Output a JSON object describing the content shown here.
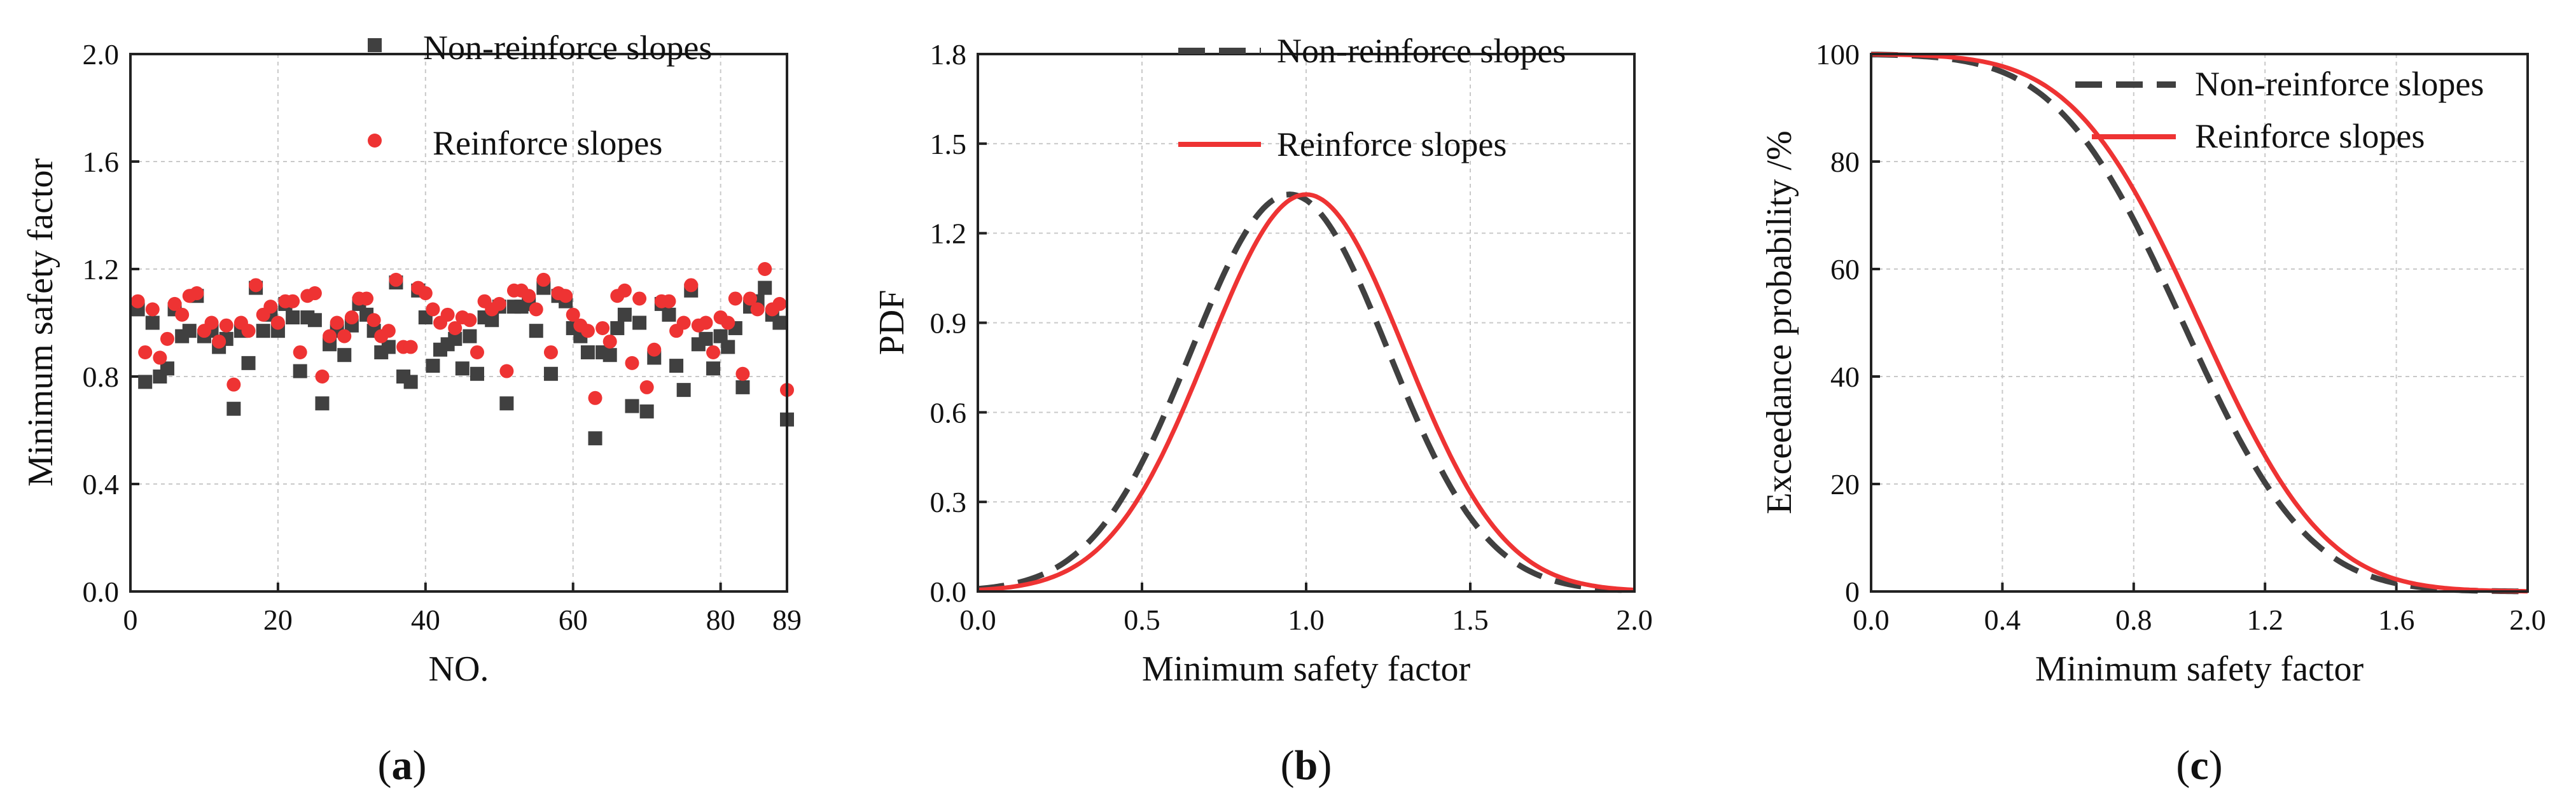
{
  "colors": {
    "non_reinforce": "#404040",
    "reinforce": "#ee3333",
    "grid": "#c9c9c9"
  },
  "chart_data": [
    {
      "id": "a",
      "type": "scatter",
      "caption": "a",
      "xlabel": "NO.",
      "ylabel": "Minimum safety factor",
      "xlim": [
        0,
        89
      ],
      "ylim": [
        0,
        2.0
      ],
      "xticks": [
        0,
        20,
        40,
        60,
        80,
        89
      ],
      "yticks": [
        0.0,
        0.4,
        0.8,
        1.2,
        1.6,
        2.0
      ],
      "grid": true,
      "legend_position": "top-right",
      "x": [
        1,
        2,
        3,
        4,
        5,
        6,
        7,
        8,
        9,
        10,
        11,
        12,
        13,
        14,
        15,
        16,
        17,
        18,
        19,
        20,
        21,
        22,
        23,
        24,
        25,
        26,
        27,
        28,
        29,
        30,
        31,
        32,
        33,
        34,
        35,
        36,
        37,
        38,
        39,
        40,
        41,
        42,
        43,
        44,
        45,
        46,
        47,
        48,
        49,
        50,
        51,
        52,
        53,
        54,
        55,
        56,
        57,
        58,
        59,
        60,
        61,
        62,
        63,
        64,
        65,
        66,
        67,
        68,
        69,
        70,
        71,
        72,
        73,
        74,
        75,
        76,
        77,
        78,
        79,
        80,
        81,
        82,
        83,
        84,
        85,
        86,
        87,
        88,
        89
      ],
      "series": [
        {
          "name": "Non-reinforce slopes",
          "marker": "square",
          "values": [
            1.05,
            0.78,
            1.0,
            0.8,
            0.83,
            1.05,
            0.95,
            0.97,
            1.1,
            0.95,
            0.97,
            0.91,
            0.94,
            0.68,
            0.97,
            0.85,
            1.13,
            0.97,
            1.03,
            0.97,
            1.07,
            1.02,
            0.82,
            1.02,
            1.01,
            0.7,
            0.92,
            0.97,
            0.88,
            0.99,
            1.07,
            1.03,
            0.97,
            0.89,
            0.91,
            1.15,
            0.8,
            0.78,
            1.12,
            1.02,
            0.84,
            0.9,
            0.92,
            0.94,
            0.83,
            0.95,
            0.81,
            1.02,
            1.01,
            1.06,
            0.7,
            1.06,
            1.06,
            1.07,
            0.97,
            1.13,
            0.81,
            1.1,
            1.08,
            0.98,
            0.95,
            0.89,
            0.57,
            0.89,
            0.88,
            0.98,
            1.03,
            0.69,
            1.0,
            0.67,
            0.87,
            1.07,
            1.03,
            0.84,
            0.75,
            1.12,
            0.92,
            0.94,
            0.83,
            0.95,
            0.91,
            0.98,
            0.76,
            1.06,
            1.08,
            1.13,
            1.03,
            1.0,
            0.64
          ]
        },
        {
          "name": "Reinforce slopes",
          "marker": "circle",
          "values": [
            1.08,
            0.89,
            1.05,
            0.87,
            0.94,
            1.07,
            1.03,
            1.1,
            1.11,
            0.97,
            1.0,
            0.93,
            0.99,
            0.77,
            1.0,
            0.97,
            1.14,
            1.03,
            1.06,
            1.0,
            1.08,
            1.08,
            0.89,
            1.1,
            1.11,
            0.8,
            0.95,
            1.0,
            0.95,
            1.02,
            1.09,
            1.09,
            1.01,
            0.95,
            0.97,
            1.16,
            0.91,
            0.91,
            1.13,
            1.11,
            1.05,
            1.0,
            1.03,
            0.98,
            1.02,
            1.01,
            0.89,
            1.08,
            1.05,
            1.07,
            0.82,
            1.12,
            1.12,
            1.1,
            1.05,
            1.16,
            0.89,
            1.11,
            1.1,
            1.03,
            0.99,
            0.97,
            0.72,
            0.98,
            0.93,
            1.1,
            1.12,
            0.85,
            1.09,
            0.76,
            0.9,
            1.08,
            1.08,
            0.97,
            1.0,
            1.14,
            0.99,
            1.0,
            0.89,
            1.02,
            1.0,
            1.09,
            0.81,
            1.09,
            1.05,
            1.2,
            1.05,
            1.07,
            0.75
          ]
        }
      ]
    },
    {
      "id": "b",
      "type": "line",
      "caption": "b",
      "xlabel": "Minimum safety factor",
      "ylabel": "PDF",
      "xlim": [
        0,
        2.0
      ],
      "ylim": [
        0,
        1.8
      ],
      "xticks": [
        0.0,
        0.5,
        1.0,
        1.5,
        2.0
      ],
      "yticks": [
        0.0,
        0.3,
        0.6,
        0.9,
        1.2,
        1.5,
        1.8
      ],
      "grid": true,
      "legend_position": "top-right",
      "series": [
        {
          "name": "Non-reinforce slopes",
          "style": "dashed",
          "distribution": "normal",
          "mean": 0.95,
          "std": 0.3
        },
        {
          "name": "Reinforce slopes",
          "style": "solid",
          "distribution": "normal",
          "mean": 1.0,
          "std": 0.3
        }
      ]
    },
    {
      "id": "c",
      "type": "line",
      "caption": "c",
      "xlabel": "Minimum safety factor",
      "ylabel": "Exceedance probability /%",
      "xlim": [
        0,
        2.0
      ],
      "ylim": [
        0,
        100
      ],
      "xticks": [
        0.0,
        0.4,
        0.8,
        1.2,
        1.6,
        2.0
      ],
      "yticks": [
        0,
        20,
        40,
        60,
        80,
        100
      ],
      "grid": true,
      "legend_position": "top-right",
      "series": [
        {
          "name": "Non-reinforce slopes",
          "style": "dashed",
          "distribution": "normal-survival",
          "mean": 0.95,
          "std": 0.3
        },
        {
          "name": "Reinforce slopes",
          "style": "solid",
          "distribution": "normal-survival",
          "mean": 1.0,
          "std": 0.3
        }
      ]
    }
  ]
}
